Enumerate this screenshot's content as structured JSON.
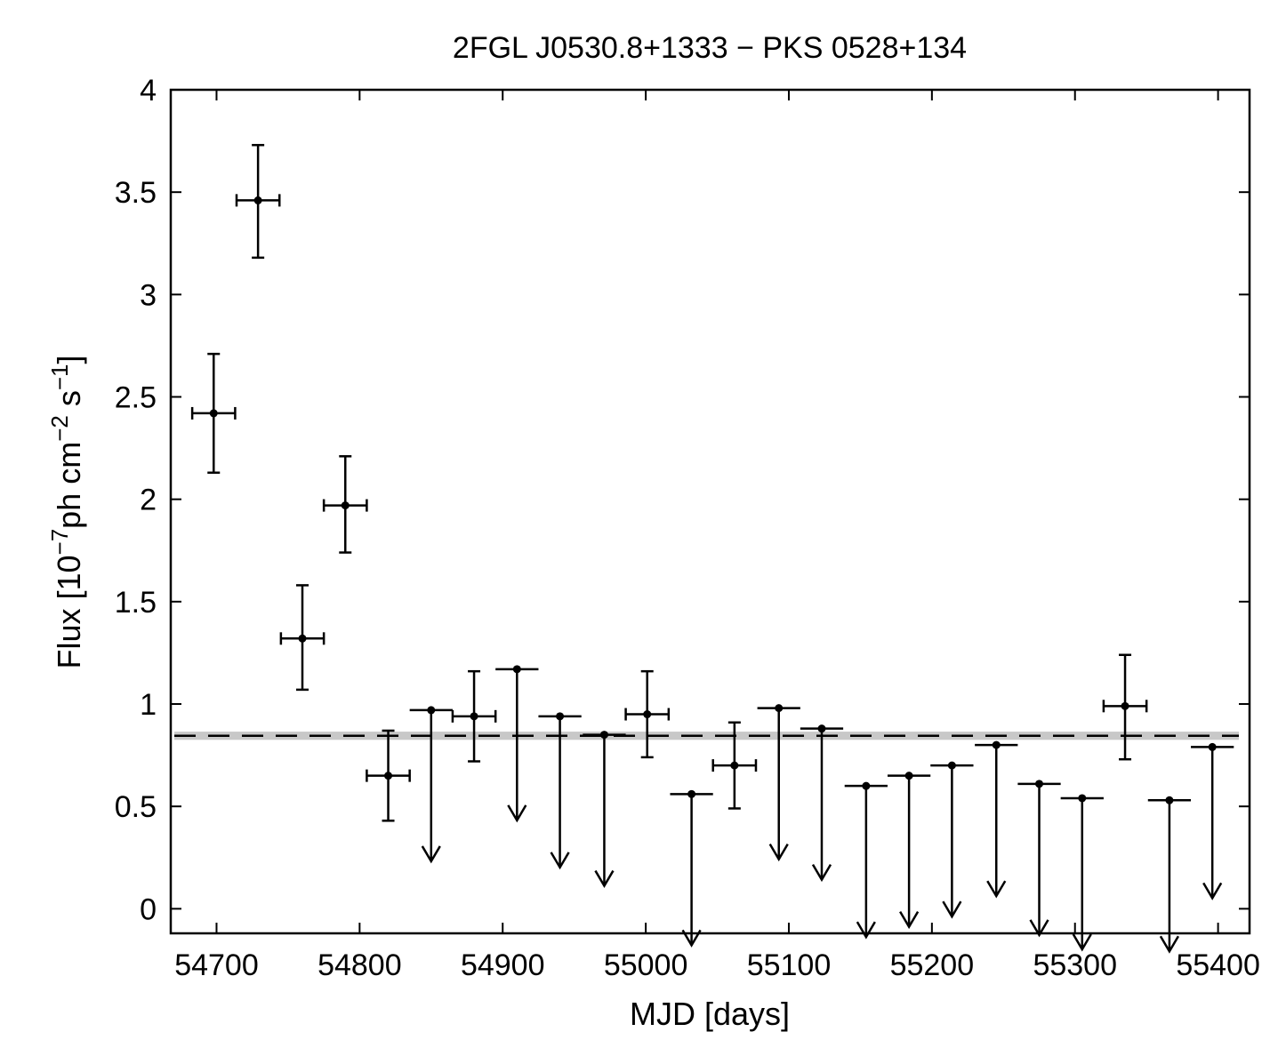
{
  "chart_data": {
    "type": "scatter",
    "title": "2FGL J0530.8+1333 − PKS 0528+134",
    "xlabel": "MJD [days]",
    "ylabel_parts": [
      "Flux [10",
      "−7",
      "ph cm",
      "−2",
      " s",
      "−1",
      "]"
    ],
    "xlim": [
      54668,
      55422
    ],
    "ylim": [
      -0.12,
      4.0
    ],
    "xticks": [
      54700,
      54800,
      54900,
      55000,
      55100,
      55200,
      55300,
      55400
    ],
    "yticks": [
      0,
      0.5,
      1,
      1.5,
      2,
      2.5,
      3,
      3.5,
      4
    ],
    "ytick_labels": [
      "0",
      "0.5",
      "1",
      "1.5",
      "2",
      "2.5",
      "3",
      "3.5",
      "4"
    ],
    "xtick_labels": [
      "54700",
      "54800",
      "54900",
      "55000",
      "55100",
      "55200",
      "55300",
      "55400"
    ],
    "average_flux": 0.845,
    "band_half_width": 0.02,
    "colors": {
      "points": "#000000",
      "band": "#c8c8c8",
      "dashed": "#000000"
    },
    "detections": [
      {
        "x": 54698,
        "y": 2.42,
        "xerr": 15,
        "ylo": 2.13,
        "yhi": 2.71
      },
      {
        "x": 54729,
        "y": 3.46,
        "xerr": 15,
        "ylo": 3.18,
        "yhi": 3.73
      },
      {
        "x": 54760,
        "y": 1.32,
        "xerr": 15,
        "ylo": 1.07,
        "yhi": 1.58
      },
      {
        "x": 54790,
        "y": 1.97,
        "xerr": 15,
        "ylo": 1.74,
        "yhi": 2.21
      },
      {
        "x": 54820,
        "y": 0.65,
        "xerr": 15,
        "ylo": 0.43,
        "yhi": 0.87
      },
      {
        "x": 54880,
        "y": 0.94,
        "xerr": 15,
        "ylo": 0.72,
        "yhi": 1.16
      },
      {
        "x": 55001,
        "y": 0.95,
        "xerr": 15,
        "ylo": 0.74,
        "yhi": 1.16
      },
      {
        "x": 55062,
        "y": 0.7,
        "xerr": 15,
        "ylo": 0.49,
        "yhi": 0.91
      },
      {
        "x": 55335,
        "y": 0.99,
        "xerr": 15,
        "ylo": 0.73,
        "yhi": 1.24
      }
    ],
    "upper_limits": [
      {
        "x": 54850,
        "y": 0.97,
        "xerr": 15
      },
      {
        "x": 54910,
        "y": 1.17,
        "xerr": 15
      },
      {
        "x": 54940,
        "y": 0.94,
        "xerr": 15
      },
      {
        "x": 54971,
        "y": 0.85,
        "xerr": 15
      },
      {
        "x": 55032,
        "y": 0.56,
        "xerr": 15
      },
      {
        "x": 55093,
        "y": 0.98,
        "xerr": 15
      },
      {
        "x": 55123,
        "y": 0.88,
        "xerr": 15
      },
      {
        "x": 55154,
        "y": 0.6,
        "xerr": 15
      },
      {
        "x": 55184,
        "y": 0.65,
        "xerr": 15
      },
      {
        "x": 55214,
        "y": 0.7,
        "xerr": 15
      },
      {
        "x": 55245,
        "y": 0.8,
        "xerr": 15
      },
      {
        "x": 55275,
        "y": 0.61,
        "xerr": 15
      },
      {
        "x": 55305,
        "y": 0.54,
        "xerr": 15
      },
      {
        "x": 55366,
        "y": 0.53,
        "xerr": 15
      },
      {
        "x": 55396,
        "y": 0.79,
        "xerr": 15
      }
    ]
  }
}
